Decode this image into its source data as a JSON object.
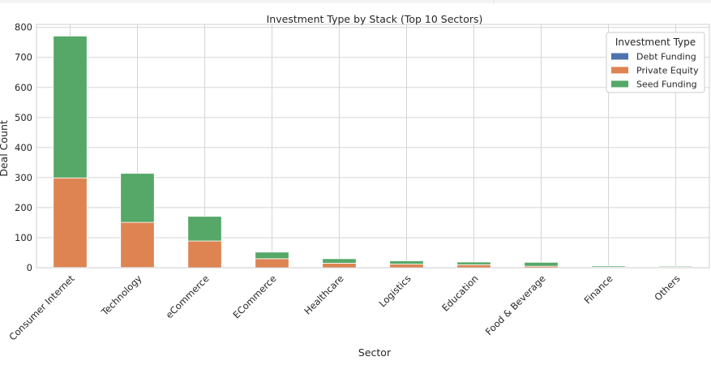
{
  "colors": {
    "debt_funding": "#4c72b0",
    "private_equity": "#dd8452",
    "seed_funding": "#55a868",
    "grid": "#d5d5d5",
    "background": "#ffffff"
  },
  "chart_data": {
    "type": "bar",
    "stacked": true,
    "title": "Investment Type by Stack (Top 10 Sectors)",
    "xlabel": "Sector",
    "ylabel": "Deal Count",
    "ylim": [
      0,
      810
    ],
    "yticks": [
      0,
      100,
      200,
      300,
      400,
      500,
      600,
      700,
      800
    ],
    "grid": true,
    "legend": {
      "title": "Investment Type",
      "placement": "top-right"
    },
    "categories": [
      "Consumer Internet",
      "Technology",
      "eCommerce",
      "ECommerce",
      "Healthcare",
      "Logistics",
      "Education",
      "Food & Beverage",
      "Finance",
      "Others"
    ],
    "series": [
      {
        "name": "Debt Funding",
        "color": "#4c72b0",
        "values": [
          1,
          1,
          0,
          0,
          0,
          0,
          0,
          0,
          0,
          0
        ]
      },
      {
        "name": "Private Equity",
        "color": "#dd8452",
        "values": [
          298,
          150,
          89,
          30,
          15,
          12,
          10,
          5,
          2,
          2
        ]
      },
      {
        "name": "Seed Funding",
        "color": "#55a868",
        "values": [
          472,
          163,
          82,
          22,
          15,
          11,
          9,
          13,
          4,
          3
        ]
      }
    ]
  }
}
